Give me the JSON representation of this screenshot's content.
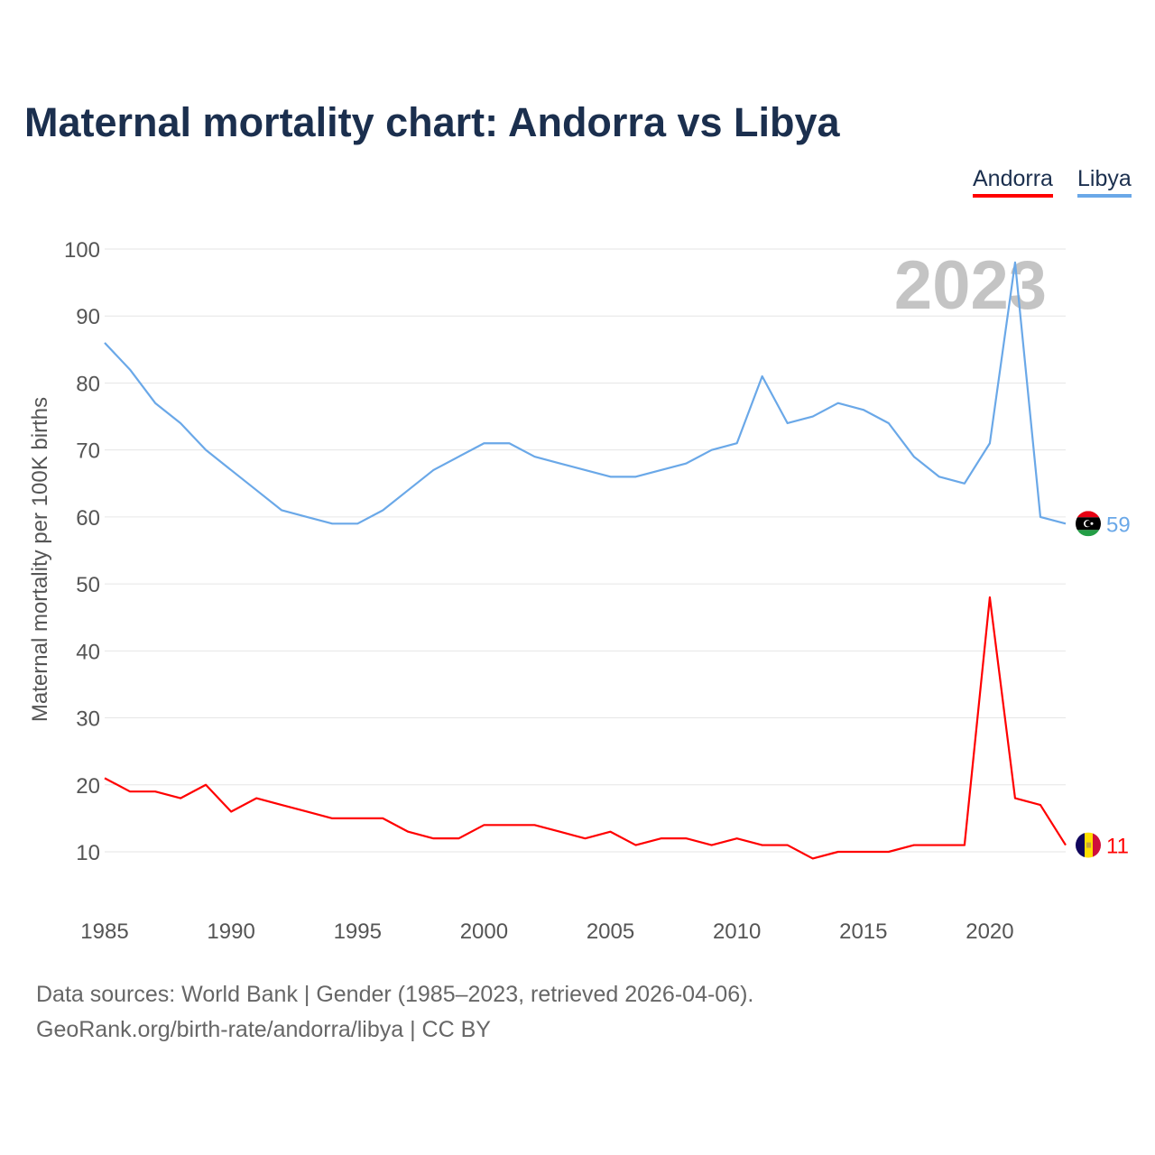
{
  "chart_data": {
    "type": "line",
    "title": "Maternal mortality chart: Andorra vs Libya",
    "xlabel": "",
    "ylabel": "Maternal mortality per 100K births",
    "xlim": [
      1985,
      2023
    ],
    "ylim": [
      0,
      100
    ],
    "x_ticks": [
      1985,
      1990,
      1995,
      2000,
      2005,
      2010,
      2015,
      2020
    ],
    "y_ticks": [
      10,
      20,
      30,
      40,
      50,
      60,
      70,
      80,
      90,
      100
    ],
    "grid": true,
    "legend_placement": "top-right",
    "year_watermark": "2023",
    "x": [
      1985,
      1986,
      1987,
      1988,
      1989,
      1990,
      1991,
      1992,
      1993,
      1994,
      1995,
      1996,
      1997,
      1998,
      1999,
      2000,
      2001,
      2002,
      2003,
      2004,
      2005,
      2006,
      2007,
      2008,
      2009,
      2010,
      2011,
      2012,
      2013,
      2014,
      2015,
      2016,
      2017,
      2018,
      2019,
      2020,
      2021,
      2022,
      2023
    ],
    "series": [
      {
        "name": "Andorra",
        "color": "#ff0000",
        "end_label": "11",
        "values": [
          21,
          19,
          19,
          18,
          20,
          16,
          18,
          17,
          16,
          15,
          15,
          15,
          13,
          12,
          12,
          14,
          14,
          14,
          13,
          12,
          13,
          11,
          12,
          12,
          11,
          12,
          11,
          11,
          9,
          10,
          10,
          10,
          11,
          11,
          11,
          48,
          18,
          17,
          11
        ]
      },
      {
        "name": "Libya",
        "color": "#6aa8e8",
        "end_label": "59",
        "values": [
          86,
          82,
          77,
          74,
          70,
          67,
          64,
          61,
          60,
          59,
          59,
          61,
          64,
          67,
          69,
          71,
          71,
          69,
          68,
          67,
          66,
          66,
          67,
          68,
          70,
          71,
          81,
          74,
          75,
          77,
          76,
          74,
          69,
          66,
          65,
          71,
          98,
          60,
          59
        ]
      }
    ]
  },
  "footer": {
    "line1": "Data sources: World Bank | Gender (1985–2023, retrieved 2026-04-06).",
    "line2": "GeoRank.org/birth-rate/andorra/libya | CC BY"
  }
}
